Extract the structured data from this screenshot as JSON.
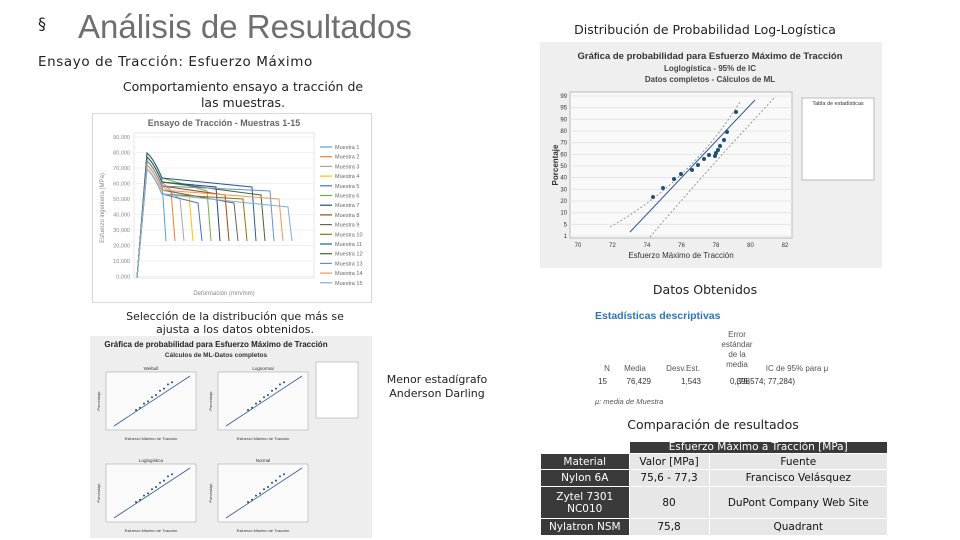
{
  "header": {
    "bullet": "§",
    "title": "Análisis de Resultados"
  },
  "left": {
    "subtitle": "Ensayo de Tracción: Esfuerzo Máximo",
    "caption": "Comportamiento ensayo a tracción de las muestras.",
    "tensile_chart": {
      "title": "Ensayo de Tracción - Muestras 1-15",
      "x_label": "Deformación (mm/mm)",
      "y_label": "Esfuerzo ingeniería (MPa)",
      "y_tick_labels": [
        "90,000",
        "80,000",
        "70,000",
        "60,000",
        "50,000",
        "40,000",
        "30,000",
        "20,000",
        "10,000",
        "0,000"
      ],
      "legend": [
        "Muestra 1",
        "Muestra 2",
        "Muestra 3",
        "Muestra 4",
        "Muestra 5",
        "Muestra 6",
        "Muestra 7",
        "Muestra 8",
        "Muestra 9",
        "Muestra 10",
        "Muestra 11",
        "Muestra 12",
        "Muestra 13",
        "Muestra 14",
        "Muestra 15"
      ]
    },
    "selection_caption": "Selección de la distribución que más se ajusta a los datos obtenidos.",
    "id_plot": {
      "title": "Gráfica de probabilidad para Esfuerzo Máximo de Tracción",
      "subtitle": "Cálculos de ML-Datos completos",
      "panels": [
        "Weibull",
        "Lognormal",
        "Loglogística",
        "Normal"
      ],
      "x_label": "Esfuerzo Máximo de Tracción",
      "y_label": "Porcentaje"
    }
  },
  "note": "Menor estadígrafo Anderson Darling",
  "right": {
    "heading": "Distribución de Probabilidad Log-Logística",
    "prob_plot": {
      "title": "Gráfica de probabilidad para Esfuerzo Máximo de Tracción",
      "subtitle": "Loglogística - 95% de IC",
      "subtitle2": "Datos completos - Cálculos de ML",
      "y_label": "Porcentaje",
      "x_label": "Esfuerzo Máximo de Tracción",
      "x_tick_labels": [
        "70",
        "72",
        "74",
        "76",
        "78",
        "80",
        "82"
      ],
      "y_tick_labels": [
        "99",
        "95",
        "90",
        "80",
        "70",
        "60",
        "50",
        "40",
        "30",
        "20",
        "10",
        "5",
        "1"
      ],
      "legend_title": "Tabla de estadísticas"
    },
    "data_heading": "Datos Obtenidos",
    "stats": {
      "title": "Estadísticas descriptivas",
      "columns": [
        "N",
        "Media",
        "Desv.Est.",
        "Error estándar de la media",
        "IC de 95% para μ"
      ],
      "row": [
        "15",
        "76,429",
        "1,543",
        "0,398",
        "(75,574; 77,284)"
      ],
      "footnote": "μ: media de Muestra"
    },
    "comparison_heading": "Comparación de resultados",
    "table": {
      "group_header": "Esfuerzo Máximo a Tracción [MPa]",
      "columns": [
        "Material",
        "Valor [MPa]",
        "Fuente"
      ],
      "rows": [
        [
          "Nylon 6A",
          "75,6 - 77,3",
          "Francisco Velásquez"
        ],
        [
          "Zytel 7301 NC010",
          "80",
          "DuPont Company Web Site"
        ],
        [
          "Nylatron NSM",
          "75,8",
          "Quadrant"
        ]
      ]
    }
  }
}
